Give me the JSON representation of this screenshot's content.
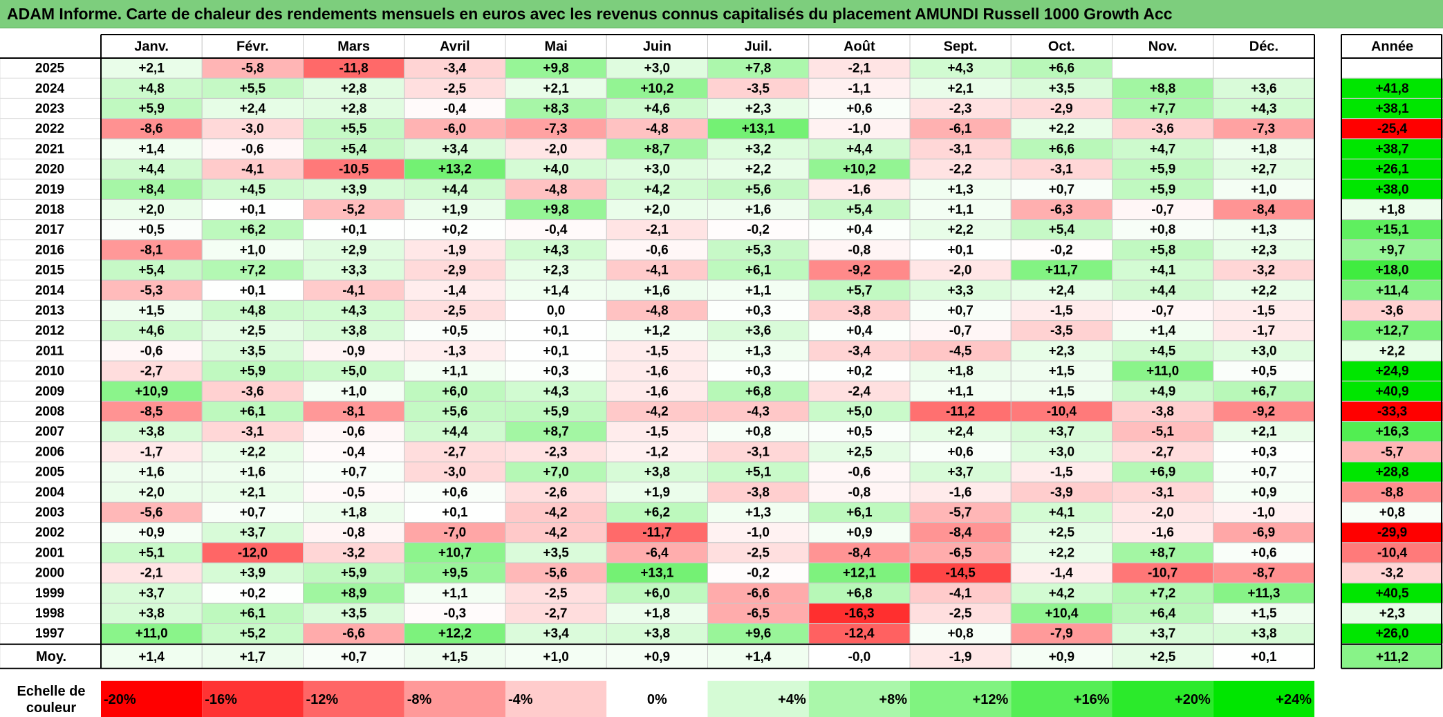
{
  "title": "ADAM Informe. Carte de chaleur des rendements mensuels en euros avec les revenus connus capitalisés du placement AMUNDI Russell 1000 Growth Acc",
  "chart_data": {
    "type": "heatmap",
    "months": [
      "Janv.",
      "Févr.",
      "Mars",
      "Avril",
      "Mai",
      "Juin",
      "Juil.",
      "Août",
      "Sept.",
      "Oct.",
      "Nov.",
      "Déc."
    ],
    "year_header": "Année",
    "rows": [
      {
        "year": "2025",
        "values": [
          "+2,1",
          "-5,8",
          "-11,8",
          "-3,4",
          "+9,8",
          "+3,0",
          "+7,8",
          "-2,1",
          "+4,3",
          "+6,6",
          "",
          ""
        ],
        "annual": ""
      },
      {
        "year": "2024",
        "values": [
          "+4,8",
          "+5,5",
          "+2,8",
          "-2,5",
          "+2,1",
          "+10,2",
          "-3,5",
          "-1,1",
          "+2,1",
          "+3,5",
          "+8,8",
          "+3,6"
        ],
        "annual": "+41,8"
      },
      {
        "year": "2023",
        "values": [
          "+5,9",
          "+2,4",
          "+2,8",
          "-0,4",
          "+8,3",
          "+4,6",
          "+2,3",
          "+0,6",
          "-2,3",
          "-2,9",
          "+7,7",
          "+4,3"
        ],
        "annual": "+38,1"
      },
      {
        "year": "2022",
        "values": [
          "-8,6",
          "-3,0",
          "+5,5",
          "-6,0",
          "-7,3",
          "-4,8",
          "+13,1",
          "-1,0",
          "-6,1",
          "+2,2",
          "-3,6",
          "-7,3"
        ],
        "annual": "-25,4"
      },
      {
        "year": "2021",
        "values": [
          "+1,4",
          "-0,6",
          "+5,4",
          "+3,4",
          "-2,0",
          "+8,7",
          "+3,2",
          "+4,4",
          "-3,1",
          "+6,6",
          "+4,7",
          "+1,8"
        ],
        "annual": "+38,7"
      },
      {
        "year": "2020",
        "values": [
          "+4,4",
          "-4,1",
          "-10,5",
          "+13,2",
          "+4,0",
          "+3,0",
          "+2,2",
          "+10,2",
          "-2,2",
          "-3,1",
          "+5,9",
          "+2,7"
        ],
        "annual": "+26,1"
      },
      {
        "year": "2019",
        "values": [
          "+8,4",
          "+4,5",
          "+3,9",
          "+4,4",
          "-4,8",
          "+4,2",
          "+5,6",
          "-1,6",
          "+1,3",
          "+0,7",
          "+5,9",
          "+1,0"
        ],
        "annual": "+38,0"
      },
      {
        "year": "2018",
        "values": [
          "+2,0",
          "+0,1",
          "-5,2",
          "+1,9",
          "+9,8",
          "+2,0",
          "+1,6",
          "+5,4",
          "+1,1",
          "-6,3",
          "-0,7",
          "-8,4"
        ],
        "annual": "+1,8"
      },
      {
        "year": "2017",
        "values": [
          "+0,5",
          "+6,2",
          "+0,1",
          "+0,2",
          "-0,4",
          "-2,1",
          "-0,2",
          "+0,4",
          "+2,2",
          "+5,4",
          "+0,8",
          "+1,3"
        ],
        "annual": "+15,1"
      },
      {
        "year": "2016",
        "values": [
          "-8,1",
          "+1,0",
          "+2,9",
          "-1,9",
          "+4,3",
          "-0,6",
          "+5,3",
          "-0,8",
          "+0,1",
          "-0,2",
          "+5,8",
          "+2,3"
        ],
        "annual": "+9,7"
      },
      {
        "year": "2015",
        "values": [
          "+5,4",
          "+7,2",
          "+3,3",
          "-2,9",
          "+2,3",
          "-4,1",
          "+6,1",
          "-9,2",
          "-2,0",
          "+11,7",
          "+4,1",
          "-3,2"
        ],
        "annual": "+18,0"
      },
      {
        "year": "2014",
        "values": [
          "-5,3",
          "+0,1",
          "-4,1",
          "-1,4",
          "+1,4",
          "+1,6",
          "+1,1",
          "+5,7",
          "+3,3",
          "+2,4",
          "+4,4",
          "+2,2"
        ],
        "annual": "+11,4"
      },
      {
        "year": "2013",
        "values": [
          "+1,5",
          "+4,8",
          "+4,3",
          "-2,5",
          "0,0",
          "-4,8",
          "+0,3",
          "-3,8",
          "+0,7",
          "-1,5",
          "-0,7",
          "-1,5"
        ],
        "annual": "-3,6"
      },
      {
        "year": "2012",
        "values": [
          "+4,6",
          "+2,5",
          "+3,8",
          "+0,5",
          "+0,1",
          "+1,2",
          "+3,6",
          "+0,4",
          "-0,7",
          "-3,5",
          "+1,4",
          "-1,7"
        ],
        "annual": "+12,7"
      },
      {
        "year": "2011",
        "values": [
          "-0,6",
          "+3,5",
          "-0,9",
          "-1,3",
          "+0,1",
          "-1,5",
          "+1,3",
          "-3,4",
          "-4,5",
          "+2,3",
          "+4,5",
          "+3,0"
        ],
        "annual": "+2,2"
      },
      {
        "year": "2010",
        "values": [
          "-2,7",
          "+5,9",
          "+5,0",
          "+1,1",
          "+0,3",
          "-1,6",
          "+0,3",
          "+0,2",
          "+1,8",
          "+1,5",
          "+11,0",
          "+0,5"
        ],
        "annual": "+24,9"
      },
      {
        "year": "2009",
        "values": [
          "+10,9",
          "-3,6",
          "+1,0",
          "+6,0",
          "+4,3",
          "-1,6",
          "+6,8",
          "-2,4",
          "+1,1",
          "+1,5",
          "+4,9",
          "+6,7"
        ],
        "annual": "+40,9"
      },
      {
        "year": "2008",
        "values": [
          "-8,5",
          "+6,1",
          "-8,1",
          "+5,6",
          "+5,9",
          "-4,2",
          "-4,3",
          "+5,0",
          "-11,2",
          "-10,4",
          "-3,8",
          "-9,2"
        ],
        "annual": "-33,3"
      },
      {
        "year": "2007",
        "values": [
          "+3,8",
          "-3,1",
          "-0,6",
          "+4,4",
          "+8,7",
          "-1,5",
          "+0,8",
          "+0,5",
          "+2,4",
          "+3,7",
          "-5,1",
          "+2,1"
        ],
        "annual": "+16,3"
      },
      {
        "year": "2006",
        "values": [
          "-1,7",
          "+2,2",
          "-0,4",
          "-2,7",
          "-2,3",
          "-1,2",
          "-3,1",
          "+2,5",
          "+0,6",
          "+3,0",
          "-2,7",
          "+0,3"
        ],
        "annual": "-5,7"
      },
      {
        "year": "2005",
        "values": [
          "+1,6",
          "+1,6",
          "+0,7",
          "-3,0",
          "+7,0",
          "+3,8",
          "+5,1",
          "-0,6",
          "+3,7",
          "-1,5",
          "+6,9",
          "+0,7"
        ],
        "annual": "+28,8"
      },
      {
        "year": "2004",
        "values": [
          "+2,0",
          "+2,1",
          "-0,5",
          "+0,6",
          "-2,6",
          "+1,9",
          "-3,8",
          "-0,8",
          "-1,6",
          "-3,9",
          "-3,1",
          "+0,9"
        ],
        "annual": "-8,8"
      },
      {
        "year": "2003",
        "values": [
          "-5,6",
          "+0,7",
          "+1,8",
          "+0,1",
          "-4,2",
          "+6,2",
          "+1,3",
          "+6,1",
          "-5,7",
          "+4,1",
          "-2,0",
          "-1,0"
        ],
        "annual": "+0,8"
      },
      {
        "year": "2002",
        "values": [
          "+0,9",
          "+3,7",
          "-0,8",
          "-7,0",
          "-4,2",
          "-11,7",
          "-1,0",
          "+0,9",
          "-8,4",
          "+2,5",
          "-1,6",
          "-6,9"
        ],
        "annual": "-29,9"
      },
      {
        "year": "2001",
        "values": [
          "+5,1",
          "-12,0",
          "-3,2",
          "+10,7",
          "+3,5",
          "-6,4",
          "-2,5",
          "-8,4",
          "-6,5",
          "+2,2",
          "+8,7",
          "+0,6"
        ],
        "annual": "-10,4"
      },
      {
        "year": "2000",
        "values": [
          "-2,1",
          "+3,9",
          "+5,9",
          "+9,5",
          "-5,6",
          "+13,1",
          "-0,2",
          "+12,1",
          "-14,5",
          "-1,4",
          "-10,7",
          "-8,7"
        ],
        "annual": "-3,2"
      },
      {
        "year": "1999",
        "values": [
          "+3,7",
          "+0,2",
          "+8,9",
          "+1,1",
          "-2,5",
          "+6,0",
          "-6,6",
          "+6,8",
          "-4,1",
          "+4,2",
          "+7,2",
          "+11,3"
        ],
        "annual": "+40,5"
      },
      {
        "year": "1998",
        "values": [
          "+3,8",
          "+6,1",
          "+3,5",
          "-0,3",
          "-2,7",
          "+1,8",
          "-6,5",
          "-16,3",
          "-2,5",
          "+10,4",
          "+6,4",
          "+1,5"
        ],
        "annual": "+2,3"
      },
      {
        "year": "1997",
        "values": [
          "+11,0",
          "+5,2",
          "-6,6",
          "+12,2",
          "+3,4",
          "+3,8",
          "+9,6",
          "-12,4",
          "+0,8",
          "-7,9",
          "+3,7",
          "+3,8"
        ],
        "annual": "+26,0"
      }
    ],
    "average": {
      "label": "Moy.",
      "values": [
        "+1,4",
        "+1,7",
        "+0,7",
        "+1,5",
        "+1,0",
        "+0,9",
        "+1,4",
        "-0,0",
        "-1,9",
        "+0,9",
        "+2,5",
        "+0,1"
      ],
      "annual": "+11,2"
    },
    "scale": {
      "label_line1": "Echelle de",
      "label_line2": "couleur",
      "stops": [
        "-20%",
        "-16%",
        "-12%",
        "-8%",
        "-4%",
        "0%",
        "+4%",
        "+8%",
        "+12%",
        "+16%",
        "+20%",
        "+24%"
      ],
      "stop_values": [
        -20,
        -16,
        -12,
        -8,
        -4,
        0,
        4,
        8,
        12,
        16,
        20,
        24
      ]
    },
    "colors": {
      "negative_max": "#ff0000",
      "neutral": "#ffffff",
      "positive_max": "#00e600",
      "title_bg": "#7dce7d"
    }
  }
}
